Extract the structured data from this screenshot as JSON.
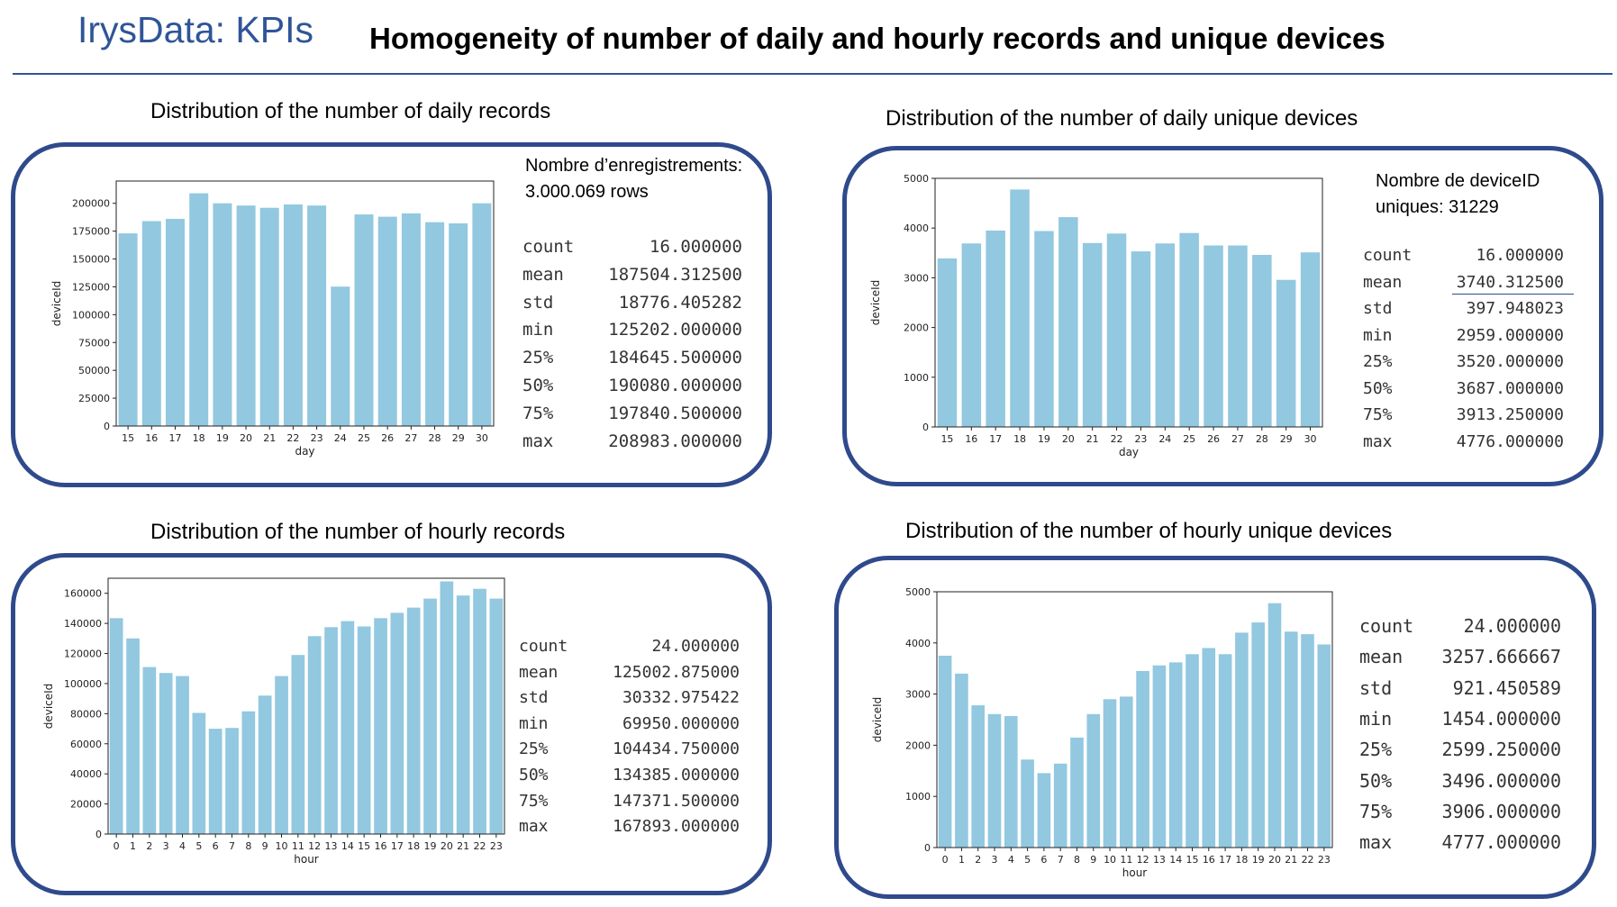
{
  "header": {
    "brand": "IrysData: KPIs",
    "title": "Homogeneity of number of daily and hourly records and unique devices"
  },
  "panels": {
    "daily_records": {
      "caption": "Distribution of the number of daily records",
      "note_line1": "Nombre d’enregistrements:",
      "note_line2": "3.000.069 rows",
      "stats": [
        {
          "label": "count",
          "value": "16.000000"
        },
        {
          "label": "mean",
          "value": "187504.312500"
        },
        {
          "label": "std",
          "value": "18776.405282"
        },
        {
          "label": "min",
          "value": "125202.000000"
        },
        {
          "label": "25%",
          "value": "184645.500000"
        },
        {
          "label": "50%",
          "value": "190080.000000"
        },
        {
          "label": "75%",
          "value": "197840.500000"
        },
        {
          "label": "max",
          "value": "208983.000000"
        }
      ]
    },
    "daily_devices": {
      "caption": "Distribution of the number of daily  unique devices",
      "note_line1": "Nombre de deviceID",
      "note_line2": "uniques: 31229",
      "stats": [
        {
          "label": "count",
          "value": "16.000000"
        },
        {
          "label": "mean",
          "value": "3740.312500"
        },
        {
          "label": "std",
          "value": "397.948023"
        },
        {
          "label": "min",
          "value": "2959.000000"
        },
        {
          "label": "25%",
          "value": "3520.000000"
        },
        {
          "label": "50%",
          "value": "3687.000000"
        },
        {
          "label": "75%",
          "value": "3913.250000"
        },
        {
          "label": "max",
          "value": "4776.000000"
        }
      ]
    },
    "hourly_records": {
      "caption": "Distribution of the number of hourly records",
      "stats": [
        {
          "label": "count",
          "value": "24.000000"
        },
        {
          "label": "mean",
          "value": "125002.875000"
        },
        {
          "label": "std",
          "value": "30332.975422"
        },
        {
          "label": "min",
          "value": "69950.000000"
        },
        {
          "label": "25%",
          "value": "104434.750000"
        },
        {
          "label": "50%",
          "value": "134385.000000"
        },
        {
          "label": "75%",
          "value": "147371.500000"
        },
        {
          "label": "max",
          "value": "167893.000000"
        }
      ]
    },
    "hourly_devices": {
      "caption": "Distribution of the number of hourly  unique devices",
      "stats": [
        {
          "label": "count",
          "value": "24.000000"
        },
        {
          "label": "mean",
          "value": "3257.666667"
        },
        {
          "label": "std",
          "value": "921.450589"
        },
        {
          "label": "min",
          "value": "1454.000000"
        },
        {
          "label": "25%",
          "value": "2599.250000"
        },
        {
          "label": "50%",
          "value": "3496.000000"
        },
        {
          "label": "75%",
          "value": "3906.000000"
        },
        {
          "label": "max",
          "value": "4777.000000"
        }
      ]
    }
  },
  "chart_data": [
    {
      "type": "bar",
      "categories": [
        "15",
        "16",
        "17",
        "18",
        "19",
        "20",
        "21",
        "22",
        "23",
        "24",
        "25",
        "26",
        "27",
        "28",
        "29",
        "30"
      ],
      "values": [
        173000,
        184000,
        186000,
        209000,
        200000,
        198000,
        196000,
        199000,
        198000,
        125200,
        190000,
        188000,
        191000,
        183000,
        182000,
        200000
      ],
      "xlabel": "day",
      "ylabel": "deviceId",
      "ylim": [
        0,
        220000
      ],
      "yticks": [
        0,
        25000,
        50000,
        75000,
        100000,
        125000,
        150000,
        175000,
        200000
      ],
      "bar_color": "#92c8e0"
    },
    {
      "type": "bar",
      "categories": [
        "15",
        "16",
        "17",
        "18",
        "19",
        "20",
        "21",
        "22",
        "23",
        "24",
        "25",
        "26",
        "27",
        "28",
        "29",
        "30"
      ],
      "values": [
        3390,
        3690,
        3950,
        4776,
        3940,
        4220,
        3700,
        3890,
        3530,
        3690,
        3900,
        3650,
        3650,
        3460,
        2959,
        3510
      ],
      "xlabel": "day",
      "ylabel": "deviceId",
      "ylim": [
        0,
        5000
      ],
      "yticks": [
        0,
        1000,
        2000,
        3000,
        4000,
        5000
      ],
      "bar_color": "#92c8e0"
    },
    {
      "type": "bar",
      "categories": [
        "0",
        "1",
        "2",
        "3",
        "4",
        "5",
        "6",
        "7",
        "8",
        "9",
        "10",
        "11",
        "12",
        "13",
        "14",
        "15",
        "16",
        "17",
        "18",
        "19",
        "20",
        "21",
        "22",
        "23"
      ],
      "values": [
        143500,
        130000,
        111000,
        107000,
        105000,
        80500,
        69950,
        70500,
        81500,
        92000,
        105000,
        119000,
        131500,
        137500,
        141500,
        138000,
        143500,
        147000,
        150500,
        156500,
        167893,
        158500,
        163000,
        156500
      ],
      "xlabel": "hour",
      "ylabel": "deviceId",
      "ylim": [
        0,
        170000
      ],
      "yticks": [
        0,
        20000,
        40000,
        60000,
        80000,
        100000,
        120000,
        140000,
        160000
      ],
      "bar_color": "#92c8e0"
    },
    {
      "type": "bar",
      "categories": [
        "0",
        "1",
        "2",
        "3",
        "4",
        "5",
        "6",
        "7",
        "8",
        "9",
        "10",
        "11",
        "12",
        "13",
        "14",
        "15",
        "16",
        "17",
        "18",
        "19",
        "20",
        "21",
        "22",
        "23"
      ],
      "values": [
        3750,
        3400,
        2780,
        2610,
        2570,
        1720,
        1454,
        1640,
        2150,
        2610,
        2900,
        2950,
        3450,
        3560,
        3620,
        3780,
        3900,
        3780,
        4200,
        4400,
        4777,
        4220,
        4170,
        3970
      ],
      "xlabel": "hour",
      "ylabel": "deviceId",
      "ylim": [
        0,
        5000
      ],
      "yticks": [
        0,
        1000,
        2000,
        3000,
        4000,
        5000
      ],
      "bar_color": "#92c8e0"
    }
  ]
}
